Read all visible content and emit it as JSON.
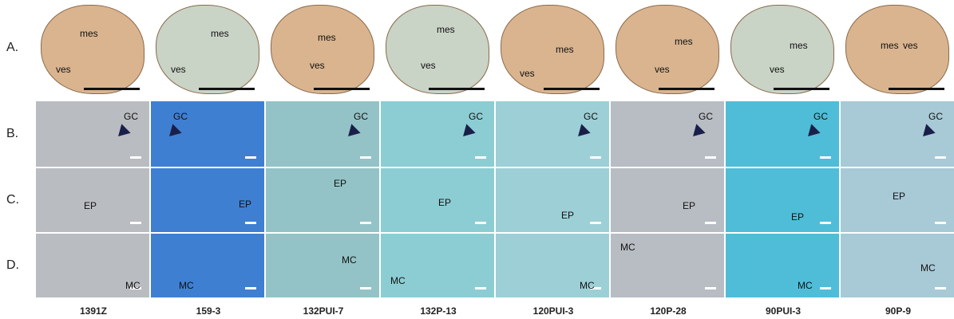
{
  "rows": [
    {
      "label": "A.",
      "cells": [
        [
          "mes",
          "ves"
        ],
        [
          "mes",
          "ves"
        ],
        [
          "mes",
          "ves"
        ],
        [
          "mes",
          "ves"
        ],
        [
          "mes",
          "ves"
        ],
        [
          "mes",
          "ves"
        ],
        [
          "mes",
          "ves"
        ],
        [
          "ves",
          "mes"
        ]
      ]
    },
    {
      "label": "B.",
      "cells": [
        "GC",
        "GC",
        "GC",
        "GC",
        "GC",
        "GC",
        "GC",
        "GC"
      ]
    },
    {
      "label": "C.",
      "cells": [
        "EP",
        "EP",
        "EP",
        "EP",
        "EP",
        "EP",
        "EP",
        "EP"
      ]
    },
    {
      "label": "D.",
      "cells": [
        "MC",
        "MC",
        "MC",
        "MC",
        "MC",
        "MC",
        "MC",
        "MC"
      ]
    }
  ],
  "columns": [
    "1391Z",
    "159-3",
    "132PUI-7",
    "132P-13",
    "120PUI-3",
    "120P-28",
    "90PUI-3",
    "90P-9"
  ]
}
